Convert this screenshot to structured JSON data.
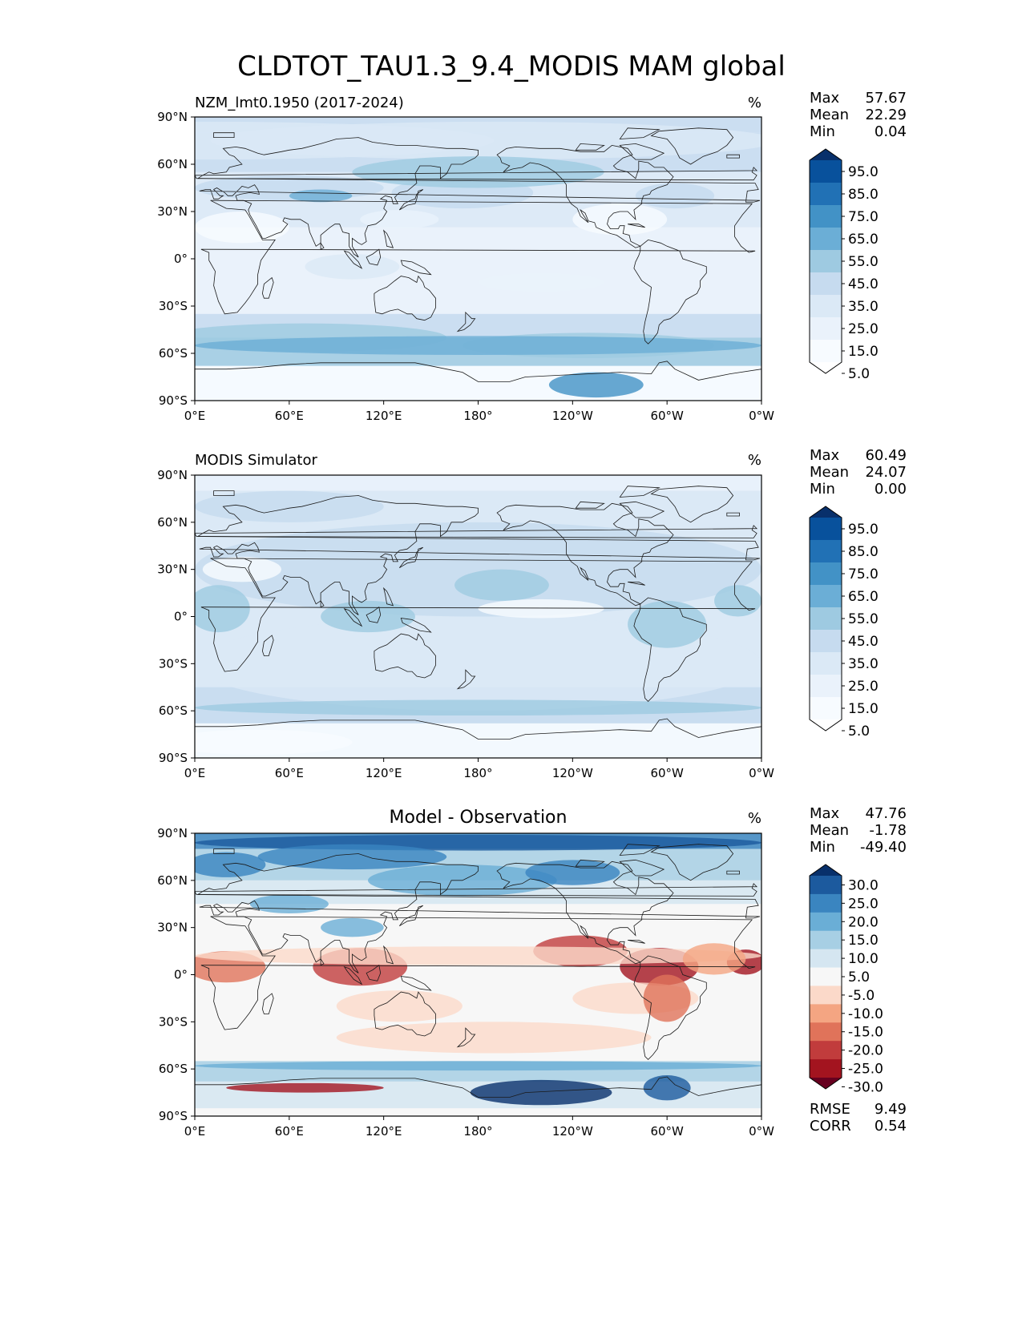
{
  "figure": {
    "title": "CLDTOT_TAU1.3_9.4_MODIS MAM global"
  },
  "chart_data": [
    {
      "type": "heatmap",
      "panel": "test",
      "title": "NZM_lmt0.1950 (2017-2024)",
      "units": "%",
      "stats": [
        {
          "label": "Max",
          "value": "57.67"
        },
        {
          "label": "Mean",
          "value": "22.29"
        },
        {
          "label": "Min",
          "value": "0.04"
        }
      ],
      "colorbar": {
        "tick_labels": [
          "95.0",
          "85.0",
          "75.0",
          "65.0",
          "55.0",
          "45.0",
          "35.0",
          "25.0",
          "15.0",
          "5.0"
        ],
        "colors": [
          "#08306b",
          "#08519c",
          "#2171b5",
          "#4292c6",
          "#6baed6",
          "#9ecae1",
          "#c6dbef",
          "#dbe9f6",
          "#eaf2fb",
          "#f7fbff",
          "#ffffff"
        ]
      },
      "xticks": [
        "0°E",
        "60°E",
        "120°E",
        "180°",
        "120°W",
        "60°W",
        "0°W"
      ],
      "yticks": [
        "90°N",
        "60°N",
        "30°N",
        "0°",
        "30°S",
        "60°S",
        "90°S"
      ]
    },
    {
      "type": "heatmap",
      "panel": "reference",
      "title": "MODIS Simulator",
      "units": "%",
      "stats": [
        {
          "label": "Max",
          "value": "60.49"
        },
        {
          "label": "Mean",
          "value": "24.07"
        },
        {
          "label": "Min",
          "value": "0.00"
        }
      ],
      "colorbar": {
        "tick_labels": [
          "95.0",
          "85.0",
          "75.0",
          "65.0",
          "55.0",
          "45.0",
          "35.0",
          "25.0",
          "15.0",
          "5.0"
        ],
        "colors": [
          "#08306b",
          "#08519c",
          "#2171b5",
          "#4292c6",
          "#6baed6",
          "#9ecae1",
          "#c6dbef",
          "#dbe9f6",
          "#eaf2fb",
          "#f7fbff",
          "#ffffff"
        ]
      },
      "xticks": [
        "0°E",
        "60°E",
        "120°E",
        "180°",
        "120°W",
        "60°W",
        "0°W"
      ],
      "yticks": [
        "90°N",
        "60°N",
        "30°N",
        "0°",
        "30°S",
        "60°S",
        "90°S"
      ]
    },
    {
      "type": "heatmap",
      "panel": "difference",
      "title": "Model - Observation",
      "units": "%",
      "stats": [
        {
          "label": "Max",
          "value": "47.76"
        },
        {
          "label": "Mean",
          "value": "-1.78"
        },
        {
          "label": "Min",
          "value": "-49.40"
        }
      ],
      "colorbar": {
        "tick_labels": [
          "30.0",
          "25.0",
          "20.0",
          "15.0",
          "10.0",
          "5.0",
          "-5.0",
          "-10.0",
          "-15.0",
          "-20.0",
          "-25.0",
          "-30.0"
        ],
        "colors": [
          "#08306b",
          "#1c5a9e",
          "#3a85c0",
          "#6aaed6",
          "#a7cfe4",
          "#d5e6f1",
          "#f7f7f7",
          "#fbd9c9",
          "#f4a582",
          "#e0735a",
          "#c13c3c",
          "#a3141f",
          "#67001f"
        ]
      },
      "xticks": [
        "0°E",
        "60°E",
        "120°E",
        "180°",
        "120°W",
        "60°W",
        "0°W"
      ],
      "yticks": [
        "90°N",
        "60°N",
        "30°N",
        "0°",
        "30°S",
        "60°S",
        "90°S"
      ],
      "metrics": [
        {
          "label": "RMSE",
          "value": "9.49"
        },
        {
          "label": "CORR",
          "value": "0.54"
        }
      ]
    }
  ]
}
